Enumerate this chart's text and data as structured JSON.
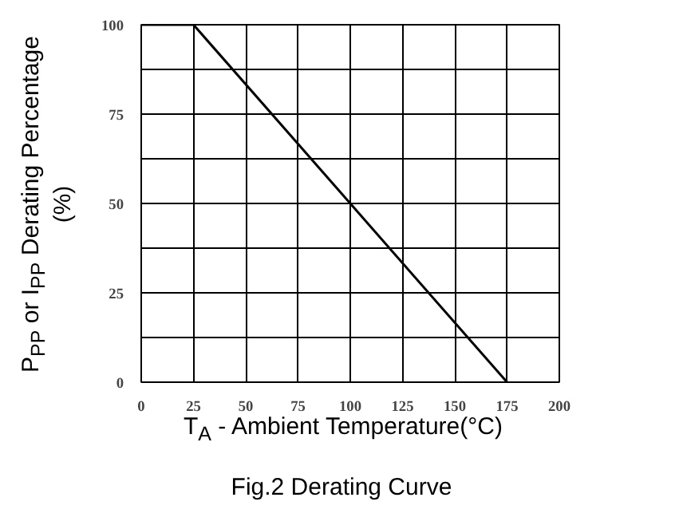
{
  "chart_data": {
    "type": "line",
    "title": "Fig.2 Derating Curve",
    "xlabel": "T$_{A}$ - Ambient Temperature(°C)",
    "ylabel": "P$_{PP}$ or I$_{PP}$ Derating Percentage\n(%)",
    "x": [
      0,
      25,
      175
    ],
    "series": [
      {
        "color": "#000000",
        "values": [
          100,
          100,
          0
        ]
      }
    ],
    "xlim": [
      0,
      200
    ],
    "xticks": [
      0,
      25,
      50,
      75,
      100,
      125,
      150,
      175,
      200
    ],
    "ylim": [
      0,
      100
    ],
    "yticks": [
      0,
      {
        "value": 12.5,
        "label": null
      },
      25,
      {
        "value": 37.5,
        "label": null
      },
      50,
      {
        "value": 62.5,
        "label": null
      },
      75,
      {
        "value": 87.5,
        "label": null
      },
      100
    ],
    "grid": true,
    "marker": "none",
    "line_style": "solid"
  }
}
